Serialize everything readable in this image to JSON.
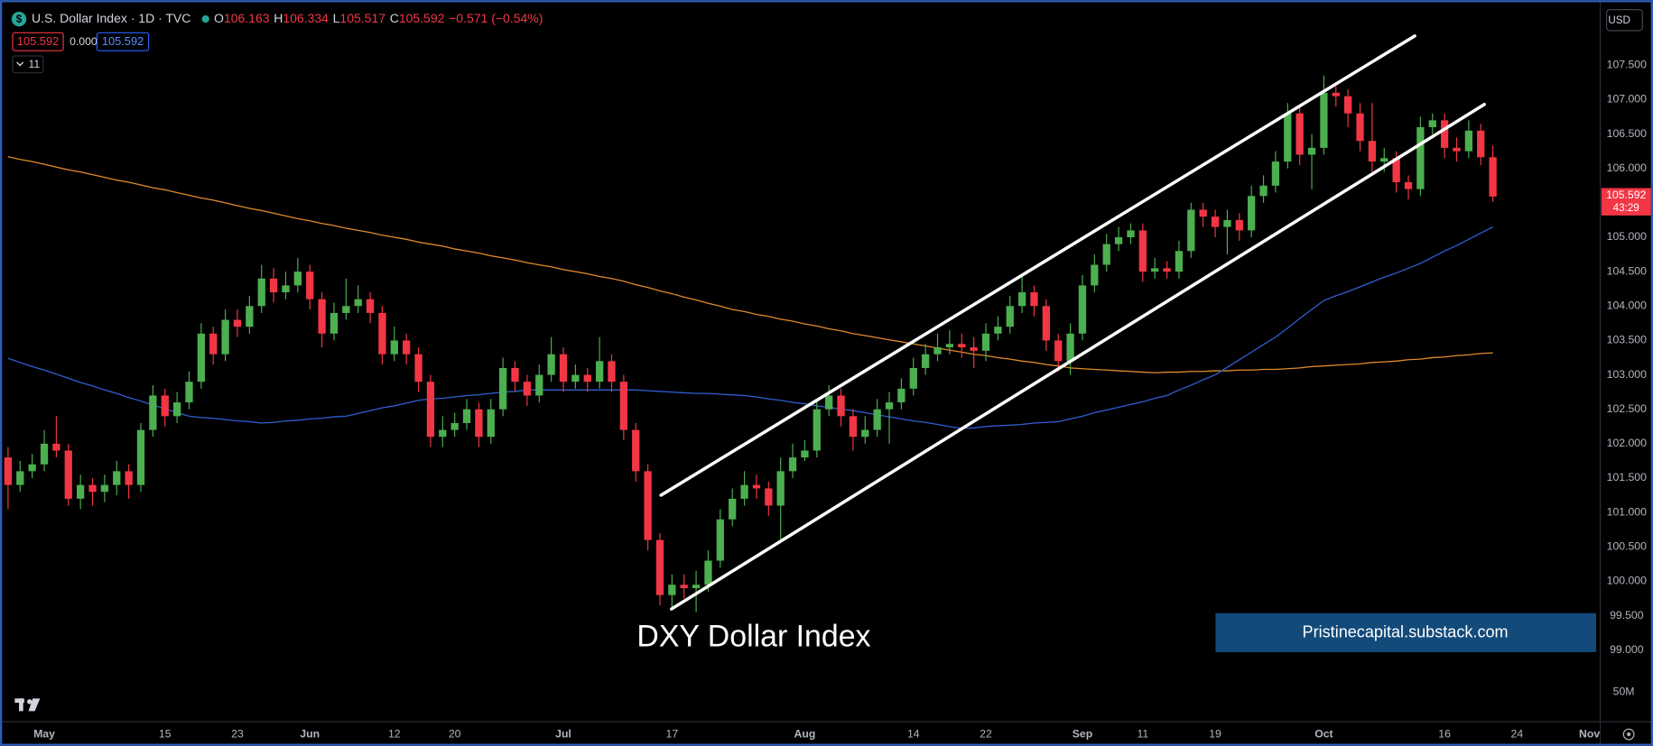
{
  "header": {
    "symbol": "U.S. Dollar Index · 1D · TVC",
    "ohlc_labels": [
      "O",
      "H",
      "L",
      "C"
    ],
    "change": "−0.571 (−0.54%)",
    "spread": "0.000",
    "indicator_count": "11",
    "currency": "USD"
  },
  "chart_data": {
    "type": "candlestick",
    "title": "DXY Dollar Index",
    "annotation": "Pristinecapital.substack.com",
    "volume_axis_label": "50M",
    "countdown": "43:29",
    "up_color": "#4caf50",
    "down_color": "#f23645",
    "open": [
      101.8,
      101.4,
      101.6,
      101.7,
      102.0,
      101.9,
      101.2,
      101.4,
      101.3,
      101.4,
      101.6,
      101.4,
      102.2,
      102.7,
      102.4,
      102.6,
      102.9,
      103.6,
      103.3,
      103.8,
      103.7,
      104.0,
      104.4,
      104.2,
      104.3,
      104.5,
      104.1,
      103.6,
      103.9,
      104.0,
      104.1,
      103.9,
      103.3,
      103.5,
      103.3,
      102.9,
      102.1,
      102.2,
      102.3,
      102.5,
      102.1,
      102.5,
      103.1,
      102.9,
      102.7,
      103.0,
      103.3,
      102.9,
      103.0,
      102.9,
      103.2,
      102.9,
      102.2,
      101.6,
      100.6,
      99.8,
      99.95,
      99.9,
      99.95,
      100.3,
      100.9,
      101.2,
      101.4,
      101.35,
      101.1,
      101.6,
      101.8,
      101.9,
      102.5,
      102.7,
      102.4,
      102.1,
      102.2,
      102.5,
      102.6,
      102.8,
      103.1,
      103.3,
      103.4,
      103.45,
      103.4,
      103.35,
      103.6,
      103.7,
      104.0,
      104.2,
      104.0,
      103.5,
      103.2,
      103.6,
      104.3,
      104.6,
      104.9,
      105.0,
      105.1,
      104.5,
      104.55,
      104.5,
      104.8,
      105.4,
      105.3,
      105.15,
      105.25,
      105.1,
      105.6,
      105.75,
      106.1,
      106.8,
      106.2,
      106.3,
      107.1,
      107.05,
      106.8,
      106.4,
      106.1,
      106.15,
      105.8,
      105.7,
      106.6,
      106.7,
      106.3,
      106.25,
      106.55,
      106.163
    ],
    "high": [
      101.95,
      101.75,
      101.85,
      102.2,
      102.4,
      102.0,
      101.55,
      101.5,
      101.55,
      101.75,
      101.7,
      102.3,
      102.85,
      102.8,
      102.75,
      103.05,
      103.75,
      103.7,
      103.95,
      103.95,
      104.15,
      104.6,
      104.55,
      104.5,
      104.7,
      104.6,
      104.2,
      104.05,
      104.4,
      104.3,
      104.2,
      104.0,
      103.7,
      103.6,
      103.4,
      103.0,
      102.4,
      102.45,
      102.65,
      102.6,
      102.65,
      103.25,
      103.2,
      103.0,
      103.15,
      103.55,
      103.4,
      103.15,
      103.1,
      103.55,
      103.3,
      103.0,
      102.3,
      101.7,
      100.7,
      100.1,
      100.1,
      100.15,
      100.45,
      101.05,
      101.35,
      101.6,
      101.55,
      101.45,
      101.8,
      102.0,
      102.05,
      102.65,
      102.85,
      102.8,
      102.5,
      102.4,
      102.65,
      102.75,
      102.95,
      103.25,
      103.45,
      103.6,
      103.65,
      103.6,
      103.55,
      103.75,
      103.85,
      104.15,
      104.45,
      104.3,
      104.1,
      103.6,
      103.75,
      104.45,
      104.75,
      105.05,
      105.15,
      105.2,
      105.2,
      104.7,
      104.65,
      104.95,
      105.5,
      105.5,
      105.4,
      105.4,
      105.35,
      105.75,
      105.9,
      106.25,
      106.95,
      106.9,
      106.5,
      107.35,
      107.2,
      107.15,
      106.95,
      106.95,
      106.3,
      106.25,
      105.9,
      106.75,
      106.8,
      106.8,
      106.45,
      106.7,
      106.65,
      106.334
    ],
    "low": [
      101.05,
      101.3,
      101.5,
      101.6,
      101.8,
      101.1,
      101.05,
      101.1,
      101.15,
      101.25,
      101.2,
      101.3,
      102.1,
      102.25,
      102.3,
      102.5,
      102.8,
      103.15,
      103.2,
      103.55,
      103.6,
      103.9,
      104.05,
      104.1,
      104.2,
      103.95,
      103.4,
      103.5,
      103.8,
      103.9,
      103.75,
      103.15,
      103.2,
      103.15,
      102.75,
      101.95,
      101.95,
      102.1,
      102.2,
      101.95,
      102.0,
      102.4,
      102.75,
      102.55,
      102.6,
      102.9,
      102.75,
      102.8,
      102.75,
      102.8,
      102.75,
      102.05,
      101.45,
      100.45,
      99.65,
      99.6,
      99.75,
      99.55,
      99.85,
      100.2,
      100.8,
      101.1,
      101.2,
      100.95,
      100.6,
      101.5,
      101.75,
      101.8,
      102.4,
      102.25,
      101.9,
      102.0,
      102.1,
      102.0,
      102.5,
      102.7,
      103.0,
      103.2,
      103.3,
      103.25,
      103.1,
      103.2,
      103.5,
      103.6,
      103.9,
      103.85,
      103.35,
      103.05,
      103.0,
      103.5,
      104.2,
      104.5,
      104.8,
      104.9,
      104.35,
      104.4,
      104.4,
      104.4,
      104.7,
      105.15,
      105.0,
      104.75,
      104.95,
      105.0,
      105.5,
      105.65,
      106.0,
      106.05,
      105.7,
      106.2,
      106.9,
      106.6,
      106.25,
      105.95,
      105.95,
      105.65,
      105.55,
      105.6,
      106.5,
      106.15,
      106.1,
      106.15,
      106.05,
      105.517
    ],
    "close": [
      101.4,
      101.6,
      101.7,
      102.0,
      101.9,
      101.2,
      101.4,
      101.3,
      101.4,
      101.6,
      101.4,
      102.2,
      102.7,
      102.4,
      102.6,
      102.9,
      103.6,
      103.3,
      103.8,
      103.7,
      104.0,
      104.4,
      104.2,
      104.3,
      104.5,
      104.1,
      103.6,
      103.9,
      104.0,
      104.1,
      103.9,
      103.3,
      103.5,
      103.3,
      102.9,
      102.1,
      102.2,
      102.3,
      102.5,
      102.1,
      102.5,
      103.1,
      102.9,
      102.7,
      103.0,
      103.3,
      102.9,
      103.0,
      102.9,
      103.2,
      102.9,
      102.2,
      101.6,
      100.6,
      99.8,
      99.95,
      99.9,
      99.95,
      100.3,
      100.9,
      101.2,
      101.4,
      101.35,
      101.1,
      101.6,
      101.8,
      101.9,
      102.5,
      102.7,
      102.4,
      102.1,
      102.2,
      102.5,
      102.6,
      102.8,
      103.1,
      103.3,
      103.4,
      103.45,
      103.4,
      103.35,
      103.6,
      103.7,
      104.0,
      104.2,
      104.0,
      103.5,
      103.2,
      103.6,
      104.3,
      104.6,
      104.9,
      105.0,
      105.1,
      104.5,
      104.55,
      104.5,
      104.8,
      105.4,
      105.3,
      105.15,
      105.25,
      105.1,
      105.6,
      105.75,
      106.1,
      106.8,
      106.2,
      106.3,
      107.1,
      107.05,
      106.8,
      106.4,
      106.1,
      106.15,
      105.8,
      105.7,
      106.6,
      106.7,
      106.3,
      106.25,
      106.55,
      106.163,
      105.592
    ],
    "overlays": [
      {
        "color": "#e08a2c",
        "values": [
          106.17,
          106.13,
          106.1,
          106.06,
          106.02,
          105.98,
          105.95,
          105.91,
          105.87,
          105.83,
          105.8,
          105.76,
          105.72,
          105.69,
          105.65,
          105.61,
          105.57,
          105.54,
          105.5,
          105.46,
          105.42,
          105.39,
          105.35,
          105.31,
          105.27,
          105.24,
          105.2,
          105.17,
          105.13,
          105.1,
          105.07,
          105.03,
          105.0,
          104.97,
          104.93,
          104.9,
          104.87,
          104.83,
          104.8,
          104.77,
          104.73,
          104.7,
          104.67,
          104.63,
          104.6,
          104.57,
          104.53,
          104.5,
          104.47,
          104.43,
          104.4,
          104.36,
          104.31,
          104.27,
          104.22,
          104.18,
          104.13,
          104.09,
          104.04,
          104.0,
          103.95,
          103.92,
          103.88,
          103.85,
          103.81,
          103.78,
          103.74,
          103.71,
          103.67,
          103.64,
          103.6,
          103.57,
          103.54,
          103.51,
          103.48,
          103.45,
          103.42,
          103.39,
          103.36,
          103.33,
          103.3,
          103.28,
          103.25,
          103.23,
          103.2,
          103.18,
          103.15,
          103.13,
          103.1,
          103.09,
          103.08,
          103.07,
          103.06,
          103.05,
          103.04,
          103.03,
          103.04,
          103.04,
          103.05,
          103.05,
          103.06,
          103.06,
          103.07,
          103.07,
          103.08,
          103.08,
          103.09,
          103.1,
          103.12,
          103.13,
          103.14,
          103.15,
          103.16,
          103.18,
          103.19,
          103.2,
          103.22,
          103.23,
          103.25,
          103.26,
          103.28,
          103.29,
          103.31,
          103.32
        ]
      },
      {
        "color": "#2f5fd0",
        "values": [
          103.24,
          103.18,
          103.12,
          103.07,
          103.01,
          102.95,
          102.89,
          102.84,
          102.78,
          102.73,
          102.67,
          102.62,
          102.56,
          102.51,
          102.45,
          102.4,
          102.38,
          102.37,
          102.35,
          102.33,
          102.32,
          102.3,
          102.31,
          102.33,
          102.34,
          102.36,
          102.37,
          102.39,
          102.4,
          102.44,
          102.48,
          102.52,
          102.55,
          102.59,
          102.63,
          102.65,
          102.66,
          102.68,
          102.7,
          102.71,
          102.73,
          102.75,
          102.76,
          102.78,
          102.78,
          102.78,
          102.78,
          102.78,
          102.78,
          102.78,
          102.78,
          102.78,
          102.78,
          102.77,
          102.76,
          102.75,
          102.74,
          102.73,
          102.73,
          102.72,
          102.71,
          102.7,
          102.68,
          102.65,
          102.63,
          102.6,
          102.58,
          102.55,
          102.53,
          102.5,
          102.48,
          102.45,
          102.42,
          102.39,
          102.36,
          102.33,
          102.31,
          102.28,
          102.25,
          102.22,
          102.23,
          102.25,
          102.26,
          102.27,
          102.28,
          102.3,
          102.31,
          102.32,
          102.36,
          102.4,
          102.45,
          102.49,
          102.53,
          102.57,
          102.61,
          102.66,
          102.7,
          102.78,
          102.85,
          102.93,
          103.0,
          103.11,
          103.22,
          103.33,
          103.44,
          103.55,
          103.68,
          103.82,
          103.95,
          104.08,
          104.15,
          104.21,
          104.28,
          104.35,
          104.42,
          104.48,
          104.55,
          104.62,
          104.71,
          104.8,
          104.88,
          104.97,
          105.06,
          105.15
        ]
      }
    ],
    "xlim": [
      -0.23,
      131.9
    ],
    "xticks": [
      {
        "value": 3,
        "label": "May"
      },
      {
        "value": 13,
        "label": "15"
      },
      {
        "value": 19,
        "label": "23"
      },
      {
        "value": 25,
        "label": "Jun"
      },
      {
        "value": 32,
        "label": "12"
      },
      {
        "value": 37,
        "label": "20"
      },
      {
        "value": 46,
        "label": "Jul"
      },
      {
        "value": 55,
        "label": "17"
      },
      {
        "value": 66,
        "label": "Aug"
      },
      {
        "value": 75,
        "label": "14"
      },
      {
        "value": 81,
        "label": "22"
      },
      {
        "value": 89,
        "label": "Sep"
      },
      {
        "value": 94,
        "label": "11"
      },
      {
        "value": 100,
        "label": "19"
      },
      {
        "value": 109,
        "label": "Oct"
      },
      {
        "value": 119,
        "label": "16"
      },
      {
        "value": 125,
        "label": "24"
      },
      {
        "value": 131,
        "label": "Nov"
      }
    ],
    "ylim": [
      97.96,
      108.37
    ],
    "yticks": [
      {
        "value": 99,
        "label": "99.000"
      },
      {
        "value": 99.5,
        "label": "99.500"
      },
      {
        "value": 100,
        "label": "100.000"
      },
      {
        "value": 100.5,
        "label": "100.500"
      },
      {
        "value": 101,
        "label": "101.000"
      },
      {
        "value": 101.5,
        "label": "101.500"
      },
      {
        "value": 102,
        "label": "102.000"
      },
      {
        "value": 102.5,
        "label": "102.500"
      },
      {
        "value": 103,
        "label": "103.000"
      },
      {
        "value": 103.5,
        "label": "103.500"
      },
      {
        "value": 104,
        "label": "104.000"
      },
      {
        "value": 104.5,
        "label": "104.500"
      },
      {
        "value": 105,
        "label": "105.000"
      },
      {
        "value": 105.5,
        "label": "105.500"
      },
      {
        "value": 106,
        "label": "106.000"
      },
      {
        "value": 106.5,
        "label": "106.500"
      },
      {
        "value": 107,
        "label": "107.000"
      },
      {
        "value": 107.5,
        "label": "107.500"
      }
    ],
    "grid": false
  }
}
